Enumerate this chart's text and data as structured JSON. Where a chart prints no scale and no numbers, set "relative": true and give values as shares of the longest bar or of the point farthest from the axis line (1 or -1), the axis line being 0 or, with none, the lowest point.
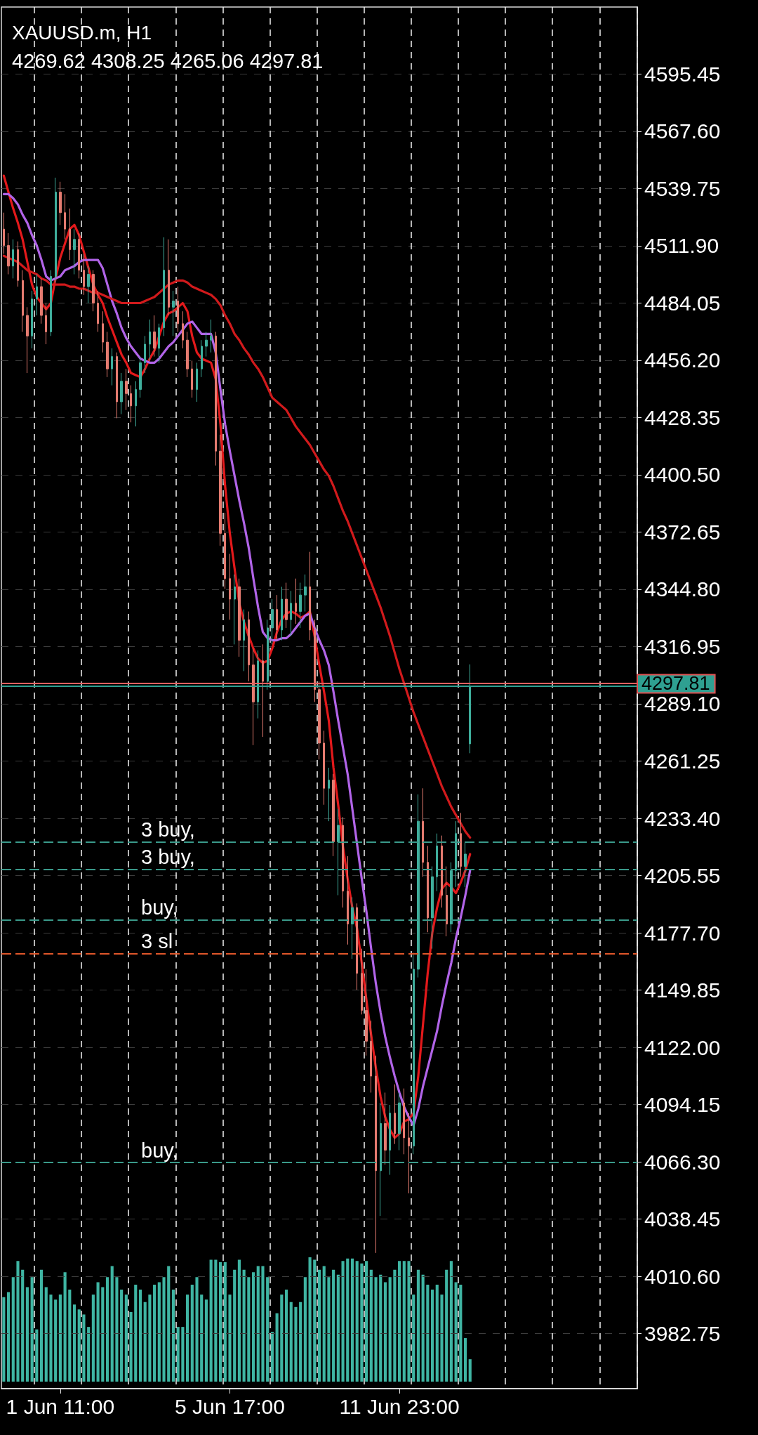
{
  "chart_data": [
    {
      "type": "candlestick",
      "title": "XAUUSD.m, H1",
      "subtitle": "4269.62 4308.25 4265.06 4297.81",
      "categories": [
        null,
        null,
        null,
        null,
        null,
        null,
        null,
        null,
        null,
        null,
        null,
        null,
        "1 Jun 11:00",
        null,
        null,
        null,
        null,
        null,
        null,
        null,
        null,
        null,
        null,
        null,
        null,
        null,
        null,
        null,
        null,
        null,
        null,
        null,
        null,
        null,
        null,
        null,
        null,
        null,
        null,
        null,
        null,
        null,
        null,
        null,
        null,
        null,
        null,
        null,
        "5 Jun 17:00",
        null,
        null,
        null,
        null,
        null,
        null,
        null,
        null,
        null,
        null,
        null,
        null,
        null,
        null,
        null,
        null,
        null,
        null,
        null,
        null,
        null,
        null,
        null,
        null,
        null,
        null,
        null,
        null,
        null,
        null,
        null,
        null,
        null,
        null,
        null,
        "11 Jun 23:00",
        null,
        null,
        null,
        null,
        null,
        null,
        null,
        null,
        null,
        null,
        null,
        null,
        null,
        null,
        null,
        null,
        null,
        null,
        null,
        null,
        null,
        null,
        null,
        null,
        null,
        null,
        null,
        null,
        null,
        null,
        null,
        null,
        null,
        null,
        null,
        null,
        null,
        null,
        null,
        null,
        null,
        null,
        null,
        null,
        null,
        null,
        null,
        null,
        null,
        null
      ],
      "ohlc": [
        [
          4520,
          4528,
          4508,
          4512
        ],
        [
          4512,
          4518,
          4498,
          4502
        ],
        [
          4502,
          4515,
          4496,
          4510
        ],
        [
          4510,
          4514,
          4492,
          4495
        ],
        [
          4495,
          4500,
          4470,
          4478
        ],
        [
          4478,
          4482,
          4450,
          4468
        ],
        [
          4468,
          4490,
          4462,
          4486
        ],
        [
          4486,
          4498,
          4478,
          4492
        ],
        [
          4492,
          4496,
          4474,
          4478
        ],
        [
          4478,
          4484,
          4464,
          4470
        ],
        [
          4470,
          4500,
          4468,
          4497
        ],
        [
          4497,
          4545,
          4494,
          4538
        ],
        [
          4538,
          4543,
          4522,
          4528
        ],
        [
          4528,
          4537,
          4515,
          4520
        ],
        [
          4520,
          4530,
          4505,
          4510
        ],
        [
          4510,
          4520,
          4498,
          4515
        ],
        [
          4515,
          4518,
          4496,
          4500
        ],
        [
          4500,
          4508,
          4488,
          4492
        ],
        [
          4492,
          4502,
          4484,
          4498
        ],
        [
          4498,
          4500,
          4480,
          4484
        ],
        [
          4484,
          4490,
          4470,
          4474
        ],
        [
          4474,
          4480,
          4460,
          4465
        ],
        [
          4465,
          4470,
          4448,
          4452
        ],
        [
          4452,
          4462,
          4444,
          4458
        ],
        [
          4458,
          4460,
          4428,
          4436
        ],
        [
          4436,
          4450,
          4430,
          4446
        ],
        [
          4446,
          4452,
          4432,
          4440
        ],
        [
          4440,
          4444,
          4426,
          4434
        ],
        [
          4434,
          4446,
          4424,
          4442
        ],
        [
          4442,
          4458,
          4438,
          4455
        ],
        [
          4455,
          4468,
          4450,
          4464
        ],
        [
          4464,
          4476,
          4456,
          4470
        ],
        [
          4470,
          4478,
          4458,
          4462
        ],
        [
          4462,
          4474,
          4455,
          4472
        ],
        [
          4472,
          4516,
          4468,
          4500
        ],
        [
          4500,
          4515,
          4478,
          4482
        ],
        [
          4482,
          4490,
          4468,
          4485
        ],
        [
          4485,
          4492,
          4470,
          4474
        ],
        [
          4474,
          4480,
          4462,
          4466
        ],
        [
          4466,
          4470,
          4448,
          4452
        ],
        [
          4452,
          4456,
          4438,
          4442
        ],
        [
          4442,
          4455,
          4436,
          4452
        ],
        [
          4452,
          4466,
          4448,
          4463
        ],
        [
          4463,
          4470,
          4458,
          4466
        ],
        [
          4466,
          4476,
          4460,
          4468
        ],
        [
          4468,
          4470,
          4405,
          4412
        ],
        [
          4412,
          4420,
          4366,
          4372
        ],
        [
          4372,
          4382,
          4345,
          4350
        ],
        [
          4350,
          4362,
          4330,
          4340
        ],
        [
          4340,
          4352,
          4318,
          4346
        ],
        [
          4346,
          4350,
          4312,
          4320
        ],
        [
          4320,
          4335,
          4305,
          4330
        ],
        [
          4330,
          4334,
          4300,
          4308
        ],
        [
          4308,
          4316,
          4269,
          4290
        ],
        [
          4290,
          4315,
          4282,
          4310
        ],
        [
          4310,
          4318,
          4273,
          4300
        ],
        [
          4300,
          4330,
          4296,
          4326
        ],
        [
          4326,
          4340,
          4318,
          4335
        ],
        [
          4335,
          4342,
          4320,
          4325
        ],
        [
          4325,
          4346,
          4320,
          4340
        ],
        [
          4340,
          4348,
          4326,
          4330
        ],
        [
          4330,
          4344,
          4322,
          4338
        ],
        [
          4338,
          4350,
          4328,
          4334
        ],
        [
          4334,
          4348,
          4326,
          4342
        ],
        [
          4342,
          4352,
          4334,
          4346
        ],
        [
          4346,
          4363,
          4320,
          4325
        ],
        [
          4325,
          4330,
          4290,
          4296
        ],
        [
          4296,
          4300,
          4262,
          4270
        ],
        [
          4270,
          4276,
          4240,
          4248
        ],
        [
          4248,
          4258,
          4232,
          4252
        ],
        [
          4252,
          4255,
          4215,
          4222
        ],
        [
          4222,
          4238,
          4196,
          4230
        ],
        [
          4230,
          4234,
          4190,
          4198
        ],
        [
          4198,
          4215,
          4172,
          4182
        ],
        [
          4182,
          4195,
          4165,
          4190
        ],
        [
          4190,
          4192,
          4150,
          4158
        ],
        [
          4158,
          4170,
          4138,
          4140
        ],
        [
          4140,
          4160,
          4118,
          4125
        ],
        [
          4125,
          4135,
          4100,
          4108
        ],
        [
          4108,
          4118,
          4022,
          4062
        ],
        [
          4062,
          4095,
          4040,
          4085
        ],
        [
          4085,
          4100,
          4065,
          4072
        ],
        [
          4072,
          4094,
          4060,
          4090
        ],
        [
          4090,
          4104,
          4075,
          4080
        ],
        [
          4080,
          4100,
          4072,
          4095
        ],
        [
          4095,
          4102,
          4070,
          4078
        ],
        [
          4078,
          4090,
          4051,
          4074
        ],
        [
          4074,
          4168,
          4070,
          4160
        ],
        [
          4160,
          4245,
          4156,
          4232
        ],
        [
          4232,
          4248,
          4205,
          4212
        ],
        [
          4212,
          4220,
          4178,
          4185
        ],
        [
          4185,
          4210,
          4170,
          4205
        ],
        [
          4205,
          4226,
          4198,
          4220
        ],
        [
          4220,
          4225,
          4190,
          4196
        ],
        [
          4196,
          4210,
          4176,
          4182
        ],
        [
          4182,
          4212,
          4178,
          4208
        ],
        [
          4208,
          4232,
          4200,
          4226
        ],
        [
          4226,
          4236,
          4205,
          4210
        ],
        [
          4210,
          4222,
          4200,
          4216
        ],
        [
          4269.62,
          4308.25,
          4265.06,
          4297.81
        ],
        null,
        null,
        null,
        null,
        null,
        null,
        null,
        null,
        null,
        null,
        null,
        null,
        null,
        null,
        null,
        null,
        null,
        null,
        null,
        null,
        null,
        null,
        null,
        null,
        null,
        null,
        null,
        null,
        null,
        null,
        null,
        null,
        null,
        null,
        null
      ],
      "colors": [
        "#e57b70",
        "#e57b70",
        "#3fae9c",
        "#e57b70",
        "#e57b70",
        "#e57b70",
        "#3fae9c",
        "#3fae9c",
        "#e57b70",
        "#e57b70",
        "#3fae9c",
        "#3fae9c",
        "#e57b70",
        "#e57b70",
        "#e57b70",
        "#3fae9c",
        "#e57b70",
        "#e57b70",
        "#3fae9c",
        "#e57b70",
        "#e57b70",
        "#e57b70",
        "#e57b70",
        "#3fae9c",
        "#e57b70",
        "#3fae9c",
        "#e57b70",
        "#e57b70",
        "#3fae9c",
        "#3fae9c",
        "#3fae9c",
        "#3fae9c",
        "#e57b70",
        "#3fae9c",
        "#3fae9c",
        "#e57b70",
        "#3fae9c",
        "#e57b70",
        "#e57b70",
        "#e57b70",
        "#e57b70",
        "#3fae9c",
        "#3fae9c",
        "#3fae9c",
        "#3fae9c",
        "#e57b70",
        "#e57b70",
        "#e57b70",
        "#e57b70",
        "#3fae9c",
        "#e57b70",
        "#3fae9c",
        "#e57b70",
        "#e57b70",
        "#3fae9c",
        "#e57b70",
        "#3fae9c",
        "#3fae9c",
        "#e57b70",
        "#3fae9c",
        "#e57b70",
        "#3fae9c",
        "#e57b70",
        "#3fae9c",
        "#3fae9c",
        "#e57b70",
        "#e57b70",
        "#e57b70",
        "#e57b70",
        "#3fae9c",
        "#e57b70",
        "#3fae9c",
        "#e57b70",
        "#e57b70",
        "#3fae9c",
        "#e57b70",
        "#e57b70",
        "#e57b70",
        "#e57b70",
        "#e57b70",
        "#3fae9c",
        "#e57b70",
        "#3fae9c",
        "#e57b70",
        "#3fae9c",
        "#e57b70",
        "#e57b70",
        "#3fae9c",
        "#3fae9c",
        "#e57b70",
        "#e57b70",
        "#3fae9c",
        "#3fae9c",
        "#e57b70",
        "#e57b70",
        "#3fae9c",
        "#3fae9c",
        "#e57b70",
        "#3fae9c",
        "#3fae9c",
        null,
        null,
        null,
        null,
        null,
        null,
        null,
        null,
        null,
        null,
        null,
        null,
        null,
        null,
        null,
        null,
        null,
        null,
        null,
        null,
        null,
        null,
        null,
        null,
        null,
        null,
        null,
        null,
        null,
        null,
        null,
        null,
        null,
        null,
        null
      ],
      "series": [
        {
          "type": "line",
          "color": "#e3191b",
          "values": [
            4546,
            4538,
            4530,
            4523,
            4515,
            4504,
            4493,
            4487,
            4484,
            4481,
            4484,
            4496,
            4506,
            4513,
            4520,
            4522,
            4517,
            4509,
            4501,
            4493,
            4488,
            4484,
            4477,
            4471,
            4465,
            4459,
            4455,
            4450,
            4449,
            4448,
            4452,
            4457,
            4461,
            4468,
            4475,
            4479,
            4480,
            4482,
            4484,
            4480,
            4468,
            4460,
            4457,
            4456,
            4455,
            4447,
            4425,
            4395,
            4372,
            4355,
            4338,
            4329,
            4322,
            4316,
            4311,
            4309,
            4310,
            4316,
            4324,
            4330,
            4333,
            4334,
            4333,
            4331,
            4332,
            4334,
            4322,
            4308,
            4295,
            4281,
            4258,
            4240,
            4220,
            4204,
            4190,
            4180,
            4163,
            4145,
            4128,
            4112,
            4098,
            4088,
            4082,
            4078,
            4080,
            4086,
            4087,
            4090,
            4108,
            4133,
            4158,
            4178,
            4190,
            4199,
            4202,
            4200,
            4197,
            4202,
            4208,
            4216,
            null,
            null,
            null,
            null,
            null,
            null,
            null,
            null,
            null,
            null,
            null,
            null,
            null,
            null,
            null,
            null,
            null,
            null,
            null,
            null,
            null,
            null,
            null,
            null,
            null,
            null,
            null,
            null,
            null,
            null,
            null,
            null,
            null,
            null,
            null
          ]
        },
        {
          "type": "line",
          "color": "#b164e8",
          "values": [
            4537,
            4537,
            4535,
            4532,
            4527,
            4523,
            4517,
            4512,
            4505,
            4497,
            4495,
            4496,
            4497,
            4500,
            4501,
            4502,
            4504,
            4505,
            4505,
            4505,
            4505,
            4501,
            4493,
            4485,
            4479,
            4472,
            4467,
            4463,
            4460,
            4457,
            4456,
            4455,
            4455,
            4457,
            4460,
            4463,
            4465,
            4468,
            4471,
            4474,
            4475,
            4472,
            4469,
            4469,
            4469,
            4460,
            4442,
            4425,
            4412,
            4400,
            4388,
            4377,
            4365,
            4350,
            4336,
            4324,
            4321,
            4320,
            4320,
            4321,
            4321,
            4323,
            4326,
            4329,
            4332,
            4333,
            4326,
            4320,
            4315,
            4308,
            4295,
            4281,
            4268,
            4255,
            4238,
            4221,
            4204,
            4188,
            4170,
            4153,
            4139,
            4127,
            4117,
            4108,
            4100,
            4093,
            4088,
            4084,
            4092,
            4103,
            4112,
            4121,
            4130,
            4142,
            4153,
            4163,
            4175,
            4185,
            4196,
            4208,
            null,
            null,
            null,
            null,
            null,
            null,
            null,
            null,
            null,
            null,
            null,
            null,
            null,
            null,
            null,
            null,
            null,
            null,
            null,
            null,
            null,
            null,
            null,
            null,
            null,
            null,
            null,
            null,
            null,
            null,
            null,
            null,
            null,
            null,
            null
          ]
        },
        {
          "type": "line",
          "color": "#d11a1c",
          "values": [
            4507,
            4506,
            4505,
            4504,
            4502,
            4500,
            4499,
            4498,
            4496,
            4495,
            4493,
            4493,
            4493,
            4493,
            4492,
            4492,
            4491,
            4491,
            4490,
            4489,
            4489,
            4488,
            4487,
            4486,
            4485,
            4484,
            4484,
            4484,
            4484,
            4484,
            4485,
            4486,
            4487,
            4489,
            4491,
            4493,
            4494,
            4495,
            4495,
            4494,
            4492,
            4491,
            4490,
            4489,
            4488,
            4486,
            4483,
            4478,
            4474,
            4469,
            4466,
            4462,
            4459,
            4455,
            4452,
            4448,
            4443,
            4438,
            4436,
            4434,
            4432,
            4428,
            4424,
            4421,
            4418,
            4415,
            4411,
            4407,
            4403,
            4400,
            4395,
            4389,
            4383,
            4378,
            4372,
            4366,
            4360,
            4354,
            4348,
            4342,
            4336,
            4329,
            4322,
            4314,
            4306,
            4299,
            4292,
            4285,
            4279,
            4273,
            4267,
            4261,
            4255,
            4249,
            4244,
            4239,
            4235,
            4231,
            4227,
            4224,
            null,
            null,
            null,
            null,
            null,
            null,
            null,
            null,
            null,
            null,
            null,
            null,
            null,
            null,
            null,
            null,
            null,
            null,
            null,
            null,
            null,
            null,
            null,
            null,
            null,
            null,
            null,
            null,
            null,
            null,
            null,
            null,
            null,
            null,
            null
          ]
        }
      ],
      "ylim": [
        3956,
        4628
      ],
      "yticks": [
        4595.45,
        {
          "value": 4567.6,
          "label": "4567.60"
        },
        4539.75,
        {
          "value": 4511.9,
          "label": "4511.90"
        },
        4484.05,
        {
          "value": 4456.2,
          "label": "4456.20"
        },
        4428.35,
        {
          "value": 4400.5,
          "label": "4400.50"
        },
        4372.65,
        {
          "value": 4344.8,
          "label": "4344.80"
        },
        4316.95,
        {
          "value": 4289.1,
          "label": "4289.10"
        },
        4261.25,
        {
          "value": 4233.4,
          "label": "4233.40"
        },
        4205.55,
        {
          "value": 4177.7,
          "label": "4177.70"
        },
        4149.85,
        {
          "value": 4122,
          "label": "4122.00"
        },
        4094.15,
        {
          "value": 4066.3,
          "label": "4066.30"
        },
        4038.45,
        {
          "value": 4010.6,
          "label": "4010.60"
        },
        3982.75
      ],
      "ref_lines": [
        {
          "axis": "y",
          "value": 4299.2,
          "color": "#e06060",
          "line_style": "solid"
        },
        {
          "axis": "y",
          "value": 4297.81,
          "label": "4297.81",
          "color": "#2fa091",
          "line_style": "solid"
        },
        {
          "axis": "y",
          "value": 4222,
          "label": "3 buy,",
          "color": "#3a9a8a",
          "line_style": "dashed"
        },
        {
          "axis": "y",
          "value": 4208.5,
          "label": "3 buy,",
          "color": "#3a9a8a",
          "line_style": "dashed"
        },
        {
          "axis": "y",
          "value": 4184,
          "label": "buy,",
          "color": "#3a9a8a",
          "line_style": "dashed"
        },
        {
          "axis": "y",
          "value": 4167.5,
          "label": "3 sl",
          "color": "#e0562a",
          "line_style": "dashed"
        },
        {
          "axis": "y",
          "value": 4066,
          "label": "buy,",
          "color": "#3a9a8a",
          "line_style": "dashed"
        }
      ],
      "grid": true,
      "marker": "none",
      "line_style": "solid"
    },
    {
      "type": "bar",
      "relative": true,
      "color": "#3fb5a3",
      "categories": [
        null,
        null,
        null,
        null,
        null,
        null,
        null,
        null,
        null,
        null,
        null,
        null,
        null,
        null,
        null,
        null,
        null,
        null,
        null,
        null,
        null,
        null,
        null,
        null,
        null,
        null,
        null,
        null,
        null,
        null,
        null,
        null,
        null,
        null,
        null,
        null,
        null,
        null,
        null,
        null,
        null,
        null,
        null,
        null,
        null,
        null,
        null,
        null,
        null,
        null,
        null,
        null,
        null,
        null,
        null,
        null,
        null,
        null,
        null,
        null,
        null,
        null,
        null,
        null,
        null,
        null,
        null,
        null,
        null,
        null,
        null,
        null,
        null,
        null,
        null,
        null,
        null,
        null,
        null,
        null,
        null,
        null,
        null,
        null,
        null,
        null,
        null,
        null,
        null,
        null,
        null,
        null,
        null,
        null,
        null,
        null,
        null,
        null,
        null,
        null,
        null,
        null,
        null,
        null,
        null,
        null,
        null,
        null,
        null,
        null,
        null,
        null,
        null,
        null,
        null,
        null,
        null,
        null,
        null,
        null,
        null,
        null,
        null,
        null,
        null,
        null,
        null,
        null,
        null,
        null,
        null,
        null,
        null,
        null,
        null
      ],
      "values": [
        0.68,
        0.72,
        0.84,
        0.97,
        0.9,
        0.76,
        0.84,
        0.42,
        0.9,
        0.76,
        0.7,
        0.66,
        0.7,
        0.88,
        0.74,
        0.62,
        0.58,
        0.54,
        0.44,
        0.7,
        0.8,
        0.76,
        0.84,
        0.93,
        0.84,
        0.74,
        0.7,
        0.56,
        0.78,
        0.74,
        0.64,
        0.7,
        0.78,
        0.8,
        0.84,
        0.93,
        0.74,
        0.44,
        0.44,
        0.7,
        0.78,
        0.84,
        0.7,
        0.66,
        0.98,
        0.98,
        0.96,
        0.96,
        0.7,
        0.9,
        0.98,
        0.9,
        0.84,
        0.88,
        0.93,
        0.93,
        0.84,
        0.4,
        0.55,
        0.7,
        0.74,
        0.64,
        0.6,
        0.64,
        0.84,
        1,
        0.98,
        0.9,
        0.93,
        0.84,
        0.9,
        0.86,
        0.97,
        0.99,
        0.99,
        0.97,
        0.95,
        0.97,
        0.9,
        0.84,
        0.86,
        0.8,
        0.84,
        0.9,
        0.97,
        0.97,
        0.97,
        0.7,
        0.9,
        0.86,
        0.78,
        0.74,
        0.78,
        0.7,
        0.9,
        0.97,
        0.8,
        0.78,
        0.35,
        0.18,
        null,
        null,
        null,
        null,
        null,
        null,
        null,
        null,
        null,
        null,
        null,
        null,
        null,
        null,
        null,
        null,
        null,
        null,
        null,
        null,
        null,
        null,
        null,
        null,
        null,
        null,
        null,
        null,
        null,
        null,
        null,
        null,
        null,
        null,
        null
      ]
    }
  ]
}
